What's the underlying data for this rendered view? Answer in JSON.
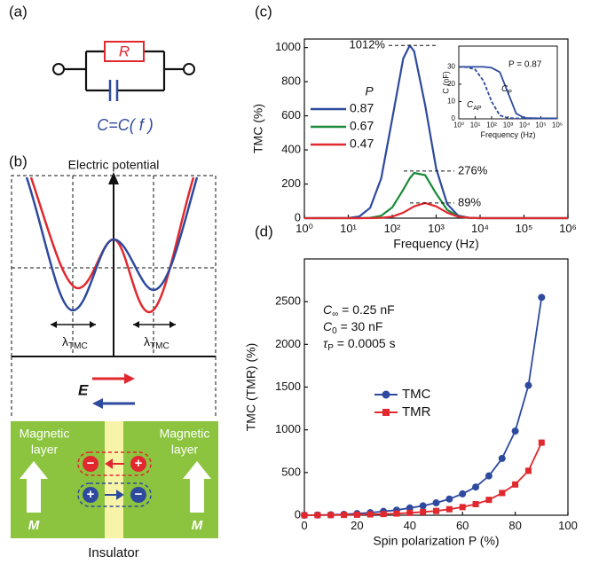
{
  "diagram_a": {
    "label": "(a)",
    "resistor": "R",
    "capacitor": "C=C( f )"
  },
  "diagram_b": {
    "label": "(b)",
    "axis_title": "Electric potential",
    "wavelength_labels": [
      {
        "symbol": "λ",
        "sub": "TMC"
      },
      {
        "symbol": "λ",
        "sub": "TMC"
      }
    ],
    "field_label": "E",
    "layer_left": [
      "Magnetic",
      "layer"
    ],
    "layer_right": [
      "Magnetic",
      "layer"
    ],
    "magnetization": [
      "M",
      "M"
    ],
    "charges": [
      [
        "−",
        "+"
      ],
      [
        "+",
        "−"
      ]
    ],
    "insulator": "Insulator"
  },
  "chart_data": [
    {
      "type": "line",
      "panel_label": "(c)",
      "xlabel": "Frequency (Hz)",
      "ylabel": "TMC (%)",
      "xscale": "log",
      "x": [
        1,
        10,
        17.8,
        31.6,
        56.2,
        100,
        178,
        251,
        316,
        562,
        1000,
        1778,
        3162,
        5623,
        10000,
        1000000
      ],
      "xlim": [
        1,
        1000000
      ],
      "ylim": [
        0,
        1050
      ],
      "xticks": [
        {
          "value": 1,
          "label": "10⁰"
        },
        {
          "value": 10,
          "label": "10¹"
        },
        {
          "value": 100,
          "label": "10²"
        },
        {
          "value": 1000,
          "label": "10³"
        },
        {
          "value": 10000,
          "label": "10⁴"
        },
        {
          "value": 100000,
          "label": "10⁵"
        },
        {
          "value": 1000000,
          "label": "10⁶"
        }
      ],
      "yticks": [
        0,
        200,
        400,
        600,
        800,
        1000
      ],
      "legend_title": "P",
      "legend": "upper left",
      "series": [
        {
          "name": "0.87",
          "color": "#2e4a9e",
          "values": [
            0,
            1,
            10,
            61,
            234,
            582,
            936,
            1012,
            978,
            662,
            291,
            83,
            15,
            2,
            0,
            0
          ]
        },
        {
          "name": "0.67",
          "color": "#1a8a3a",
          "values": [
            0,
            0,
            0,
            2,
            14,
            63,
            167,
            234,
            265,
            252,
            144,
            49,
            10,
            1,
            0,
            0
          ]
        },
        {
          "name": "0.47",
          "color": "#e0282e",
          "values": [
            0,
            0,
            0,
            0,
            2,
            9,
            32,
            54,
            69,
            89,
            69,
            32,
            9,
            2,
            0,
            0
          ]
        }
      ],
      "annotations": [
        {
          "value": 1012,
          "label": "1012%"
        },
        {
          "value": 276,
          "label": "276%"
        },
        {
          "value": 89,
          "label": "89%"
        }
      ]
    },
    {
      "type": "line",
      "xlabel": "Frequency (Hz)",
      "ylabel": "C (nF)",
      "xscale": "log",
      "x": [
        1,
        3.16,
        10,
        31.6,
        100,
        316,
        1000,
        3162,
        10000,
        100000,
        1000000
      ],
      "xlim": [
        1,
        1000000
      ],
      "ylim": [
        0,
        42
      ],
      "xticks": [
        {
          "value": 1,
          "label": "10⁰"
        },
        {
          "value": 10,
          "label": "10¹"
        },
        {
          "value": 100,
          "label": "10²"
        },
        {
          "value": 1000,
          "label": "10³"
        },
        {
          "value": 10000,
          "label": "10⁴"
        },
        {
          "value": 100000,
          "label": "10⁵"
        },
        {
          "value": 1000000,
          "label": "10⁶"
        }
      ],
      "yticks": [
        0,
        10,
        20,
        30
      ],
      "annotation": "P = 0.87",
      "series": [
        {
          "name": "C",
          "name_sub": "P",
          "color": "#2e4a9e",
          "dashed": false,
          "values": [
            30,
            30,
            30,
            30,
            29.5,
            27,
            15,
            3,
            0.5,
            0.3,
            0.3
          ]
        },
        {
          "name": "C",
          "name_sub": "AP",
          "color": "#2e4a9e",
          "dashed": true,
          "values": [
            30,
            29.8,
            28.5,
            22,
            10,
            2,
            0.5,
            0.3,
            0.3,
            0.3,
            0.3
          ]
        }
      ]
    },
    {
      "type": "line",
      "panel_label": "(d)",
      "xlabel": "Spin polarization P (%)",
      "ylabel": "TMC (TMR) (%)",
      "x": [
        0,
        5,
        10,
        15,
        20,
        25,
        30,
        35,
        40,
        45,
        50,
        55,
        60,
        65,
        70,
        75,
        80,
        85,
        90
      ],
      "xlim": [
        0,
        100
      ],
      "ylim": [
        0,
        3000
      ],
      "xticks": [
        0,
        20,
        40,
        60,
        80,
        100
      ],
      "yticks": [
        0,
        500,
        1000,
        1500,
        2000,
        2500
      ],
      "legend": "center",
      "notes": [
        {
          "symbol": "C",
          "sub": "∞",
          "text": " = 0.25 nF"
        },
        {
          "symbol": "C",
          "sub": "0",
          "text": " = 30 nF"
        },
        {
          "symbol": "τ",
          "sub": "P",
          "text": " = 0.0005 s"
        }
      ],
      "series": [
        {
          "name": "TMC",
          "color": "#2e4a9e",
          "marker": "circle",
          "values": [
            0,
            2,
            5,
            10,
            20,
            30,
            45,
            60,
            85,
            110,
            145,
            190,
            250,
            330,
            460,
            665,
            985,
            1520,
            2550
          ]
        },
        {
          "name": "TMR",
          "color": "#e0282e",
          "marker": "square",
          "values": [
            0,
            1,
            2,
            4,
            6,
            10,
            14,
            20,
            28,
            38,
            50,
            70,
            95,
            130,
            180,
            260,
            360,
            520,
            850
          ]
        }
      ]
    }
  ]
}
